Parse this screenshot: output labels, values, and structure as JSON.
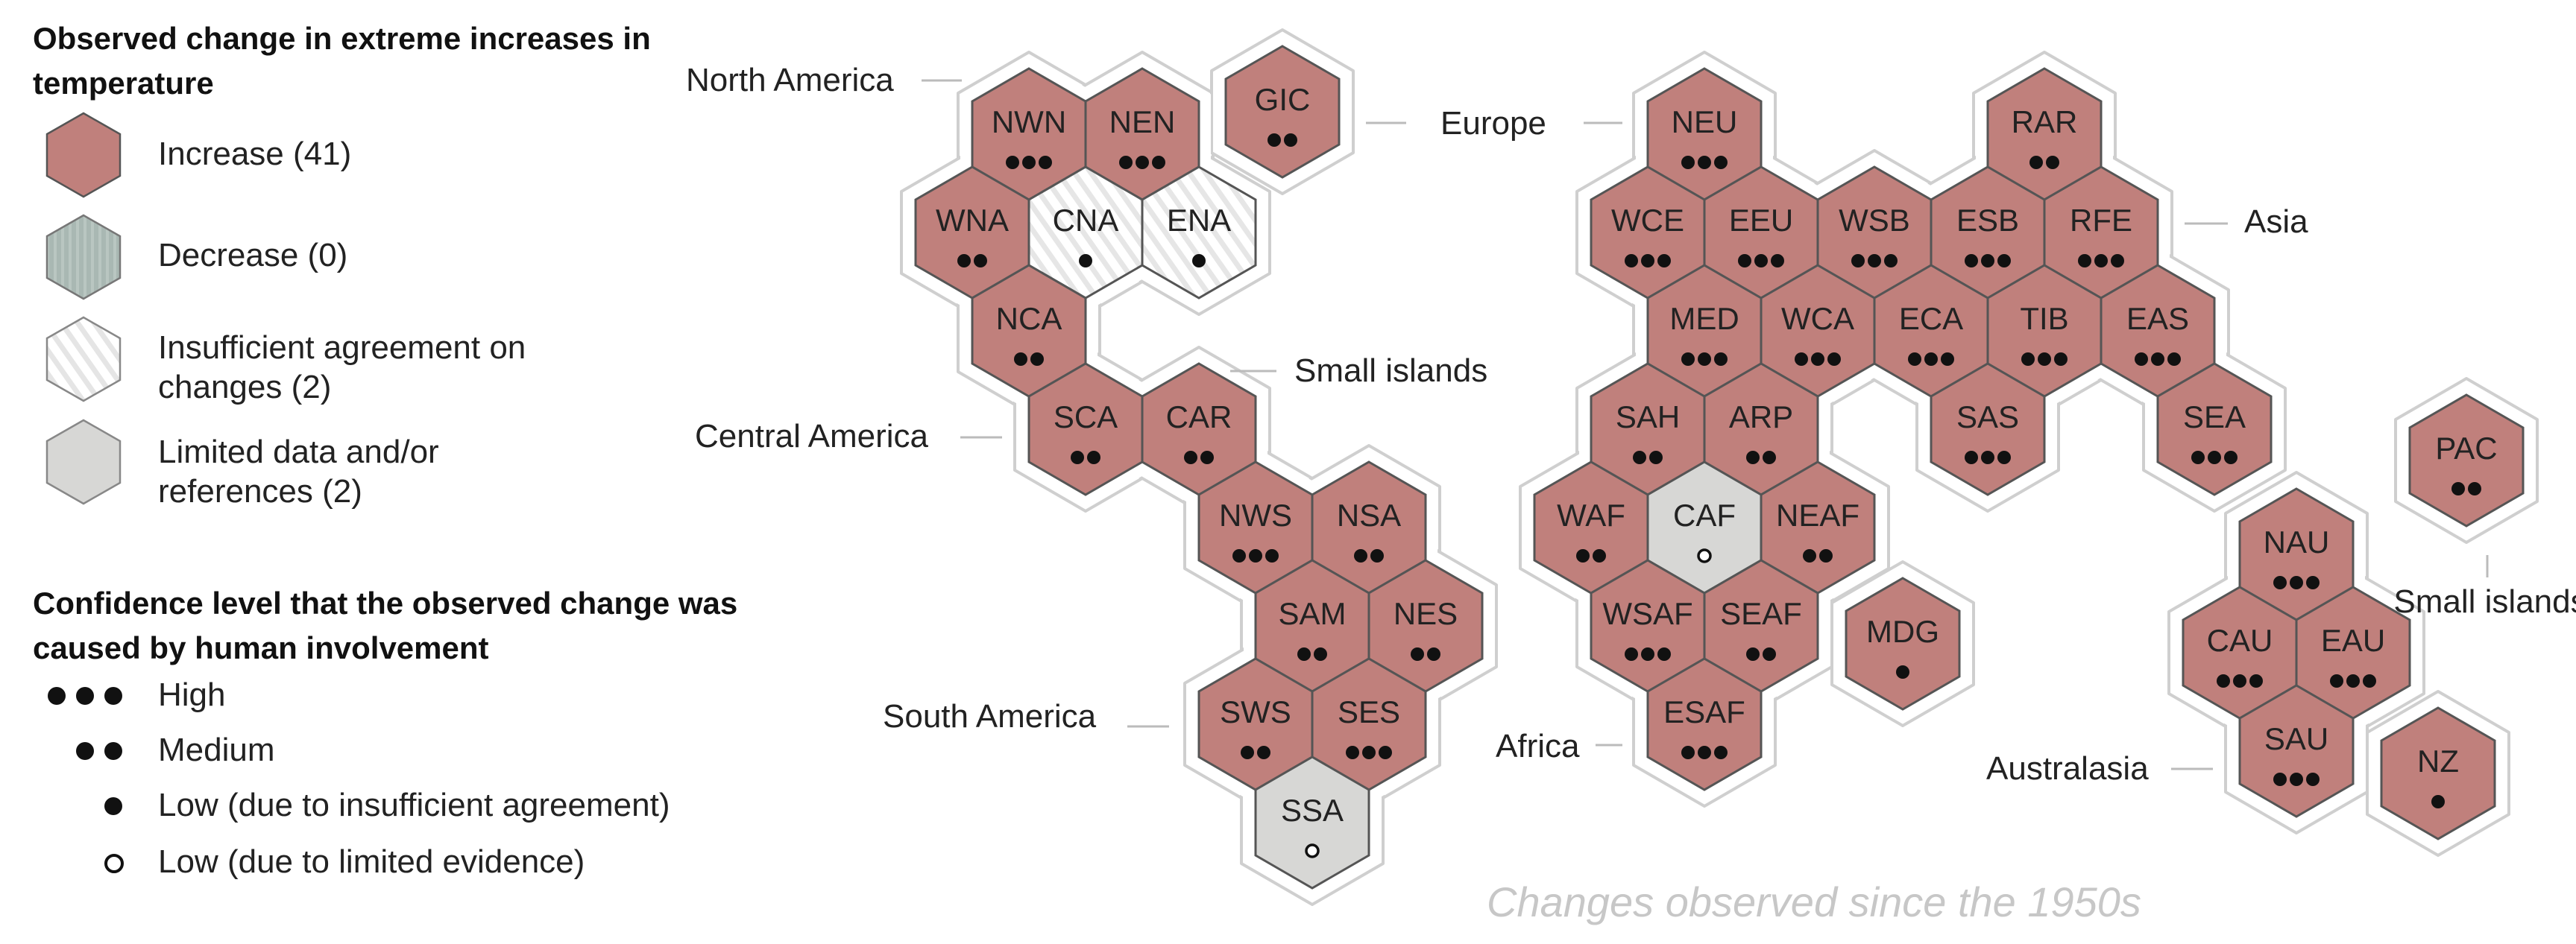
{
  "legend": {
    "change_title": "Observed change in extreme increases in temperature",
    "items": [
      {
        "label": "Increase (41)",
        "fill": "#c0807c"
      },
      {
        "label": "Decrease (0)",
        "fill": "#a9b8b3"
      },
      {
        "label": "Insufficient agreement on changes (2)",
        "fill": "hatch"
      },
      {
        "label": "Limited data and/or references (2)",
        "fill": "#d7d7d5"
      }
    ],
    "confidence_title": "Confidence level that the observed change was caused by human involvement",
    "confidence": [
      {
        "label": "High",
        "dots": 3,
        "kind": "filled"
      },
      {
        "label": "Medium",
        "dots": 2,
        "kind": "filled"
      },
      {
        "label": "Low (due to insufficient agreement)",
        "dots": 1,
        "kind": "filled"
      },
      {
        "label": "Low (due to limited evidence)",
        "dots": 1,
        "kind": "open"
      }
    ]
  },
  "colors": {
    "increase": "#c0807c",
    "decrease": "#a9b8b3",
    "limited": "#d7d7d5",
    "hex_stroke": "#555555",
    "outline": "#cfcfcf"
  },
  "region_groups": [
    "North America",
    "Europe",
    "Asia",
    "Small islands",
    "Central America",
    "South America",
    "Africa",
    "Small islands",
    "Australasia"
  ],
  "regions": [
    {
      "code": "NWN",
      "status": "increase",
      "confidence": "high"
    },
    {
      "code": "NEN",
      "status": "increase",
      "confidence": "high"
    },
    {
      "code": "GIC",
      "status": "increase",
      "confidence": "medium"
    },
    {
      "code": "WNA",
      "status": "increase",
      "confidence": "medium"
    },
    {
      "code": "CNA",
      "status": "insufficient",
      "confidence": "low"
    },
    {
      "code": "ENA",
      "status": "insufficient",
      "confidence": "low"
    },
    {
      "code": "NCA",
      "status": "increase",
      "confidence": "medium"
    },
    {
      "code": "SCA",
      "status": "increase",
      "confidence": "medium"
    },
    {
      "code": "CAR",
      "status": "increase",
      "confidence": "medium"
    },
    {
      "code": "NWS",
      "status": "increase",
      "confidence": "high"
    },
    {
      "code": "NSA",
      "status": "increase",
      "confidence": "medium"
    },
    {
      "code": "SAM",
      "status": "increase",
      "confidence": "medium"
    },
    {
      "code": "NES",
      "status": "increase",
      "confidence": "medium"
    },
    {
      "code": "SWS",
      "status": "increase",
      "confidence": "medium"
    },
    {
      "code": "SES",
      "status": "increase",
      "confidence": "high"
    },
    {
      "code": "SSA",
      "status": "limited",
      "confidence": "limited"
    },
    {
      "code": "NEU",
      "status": "increase",
      "confidence": "high"
    },
    {
      "code": "RAR",
      "status": "increase",
      "confidence": "medium"
    },
    {
      "code": "WCE",
      "status": "increase",
      "confidence": "high"
    },
    {
      "code": "EEU",
      "status": "increase",
      "confidence": "high"
    },
    {
      "code": "WSB",
      "status": "increase",
      "confidence": "high"
    },
    {
      "code": "ESB",
      "status": "increase",
      "confidence": "high"
    },
    {
      "code": "RFE",
      "status": "increase",
      "confidence": "high"
    },
    {
      "code": "MED",
      "status": "increase",
      "confidence": "high"
    },
    {
      "code": "WCA",
      "status": "increase",
      "confidence": "high"
    },
    {
      "code": "ECA",
      "status": "increase",
      "confidence": "high"
    },
    {
      "code": "TIB",
      "status": "increase",
      "confidence": "high"
    },
    {
      "code": "EAS",
      "status": "increase",
      "confidence": "high"
    },
    {
      "code": "SAH",
      "status": "increase",
      "confidence": "medium"
    },
    {
      "code": "ARP",
      "status": "increase",
      "confidence": "medium"
    },
    {
      "code": "SAS",
      "status": "increase",
      "confidence": "high"
    },
    {
      "code": "SEA",
      "status": "increase",
      "confidence": "high"
    },
    {
      "code": "WAF",
      "status": "increase",
      "confidence": "medium"
    },
    {
      "code": "CAF",
      "status": "limited",
      "confidence": "limited"
    },
    {
      "code": "NEAF",
      "status": "increase",
      "confidence": "medium"
    },
    {
      "code": "WSAF",
      "status": "increase",
      "confidence": "high"
    },
    {
      "code": "SEAF",
      "status": "increase",
      "confidence": "medium"
    },
    {
      "code": "MDG",
      "status": "increase",
      "confidence": "low"
    },
    {
      "code": "ESAF",
      "status": "increase",
      "confidence": "high"
    },
    {
      "code": "PAC",
      "status": "increase",
      "confidence": "medium"
    },
    {
      "code": "NAU",
      "status": "increase",
      "confidence": "high"
    },
    {
      "code": "CAU",
      "status": "increase",
      "confidence": "high"
    },
    {
      "code": "EAU",
      "status": "increase",
      "confidence": "high"
    },
    {
      "code": "SAU",
      "status": "increase",
      "confidence": "high"
    },
    {
      "code": "NZ",
      "status": "increase",
      "confidence": "low"
    }
  ],
  "footnote": "Changes observed since the 1950s"
}
